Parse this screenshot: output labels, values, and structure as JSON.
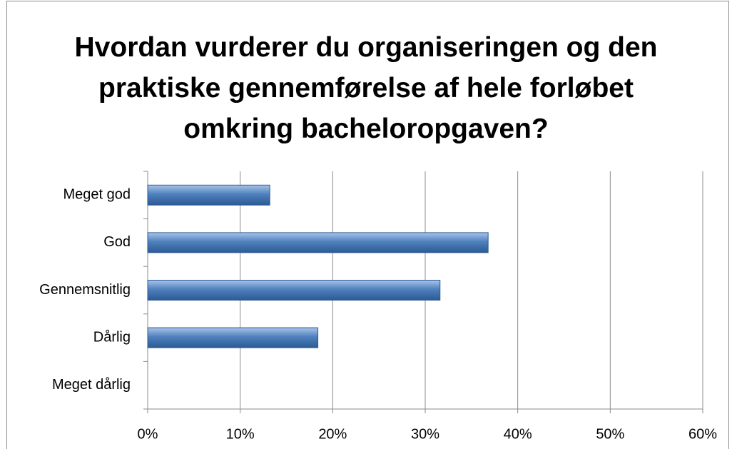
{
  "chart_data": {
    "type": "bar",
    "orientation": "horizontal",
    "title": "Hvordan vurderer du organiseringen og den praktiske gennemførelse af hele forløbet omkring bacheloropgaven?",
    "categories": [
      "Meget god",
      "God",
      "Gennemsnitlig",
      "Dårlig",
      "Meget dårlig"
    ],
    "values": [
      13.2,
      36.8,
      31.6,
      18.4,
      0
    ],
    "color": "#4f81bd",
    "xlim": [
      0,
      60
    ],
    "xticks": [
      {
        "value": 0,
        "label": "0%"
      },
      {
        "value": 10,
        "label": "10%"
      },
      {
        "value": 20,
        "label": "20%"
      },
      {
        "value": 30,
        "label": "30%"
      },
      {
        "value": 40,
        "label": "40%"
      },
      {
        "value": 50,
        "label": "50%"
      },
      {
        "value": 60,
        "label": "60%"
      }
    ],
    "grid": true
  }
}
